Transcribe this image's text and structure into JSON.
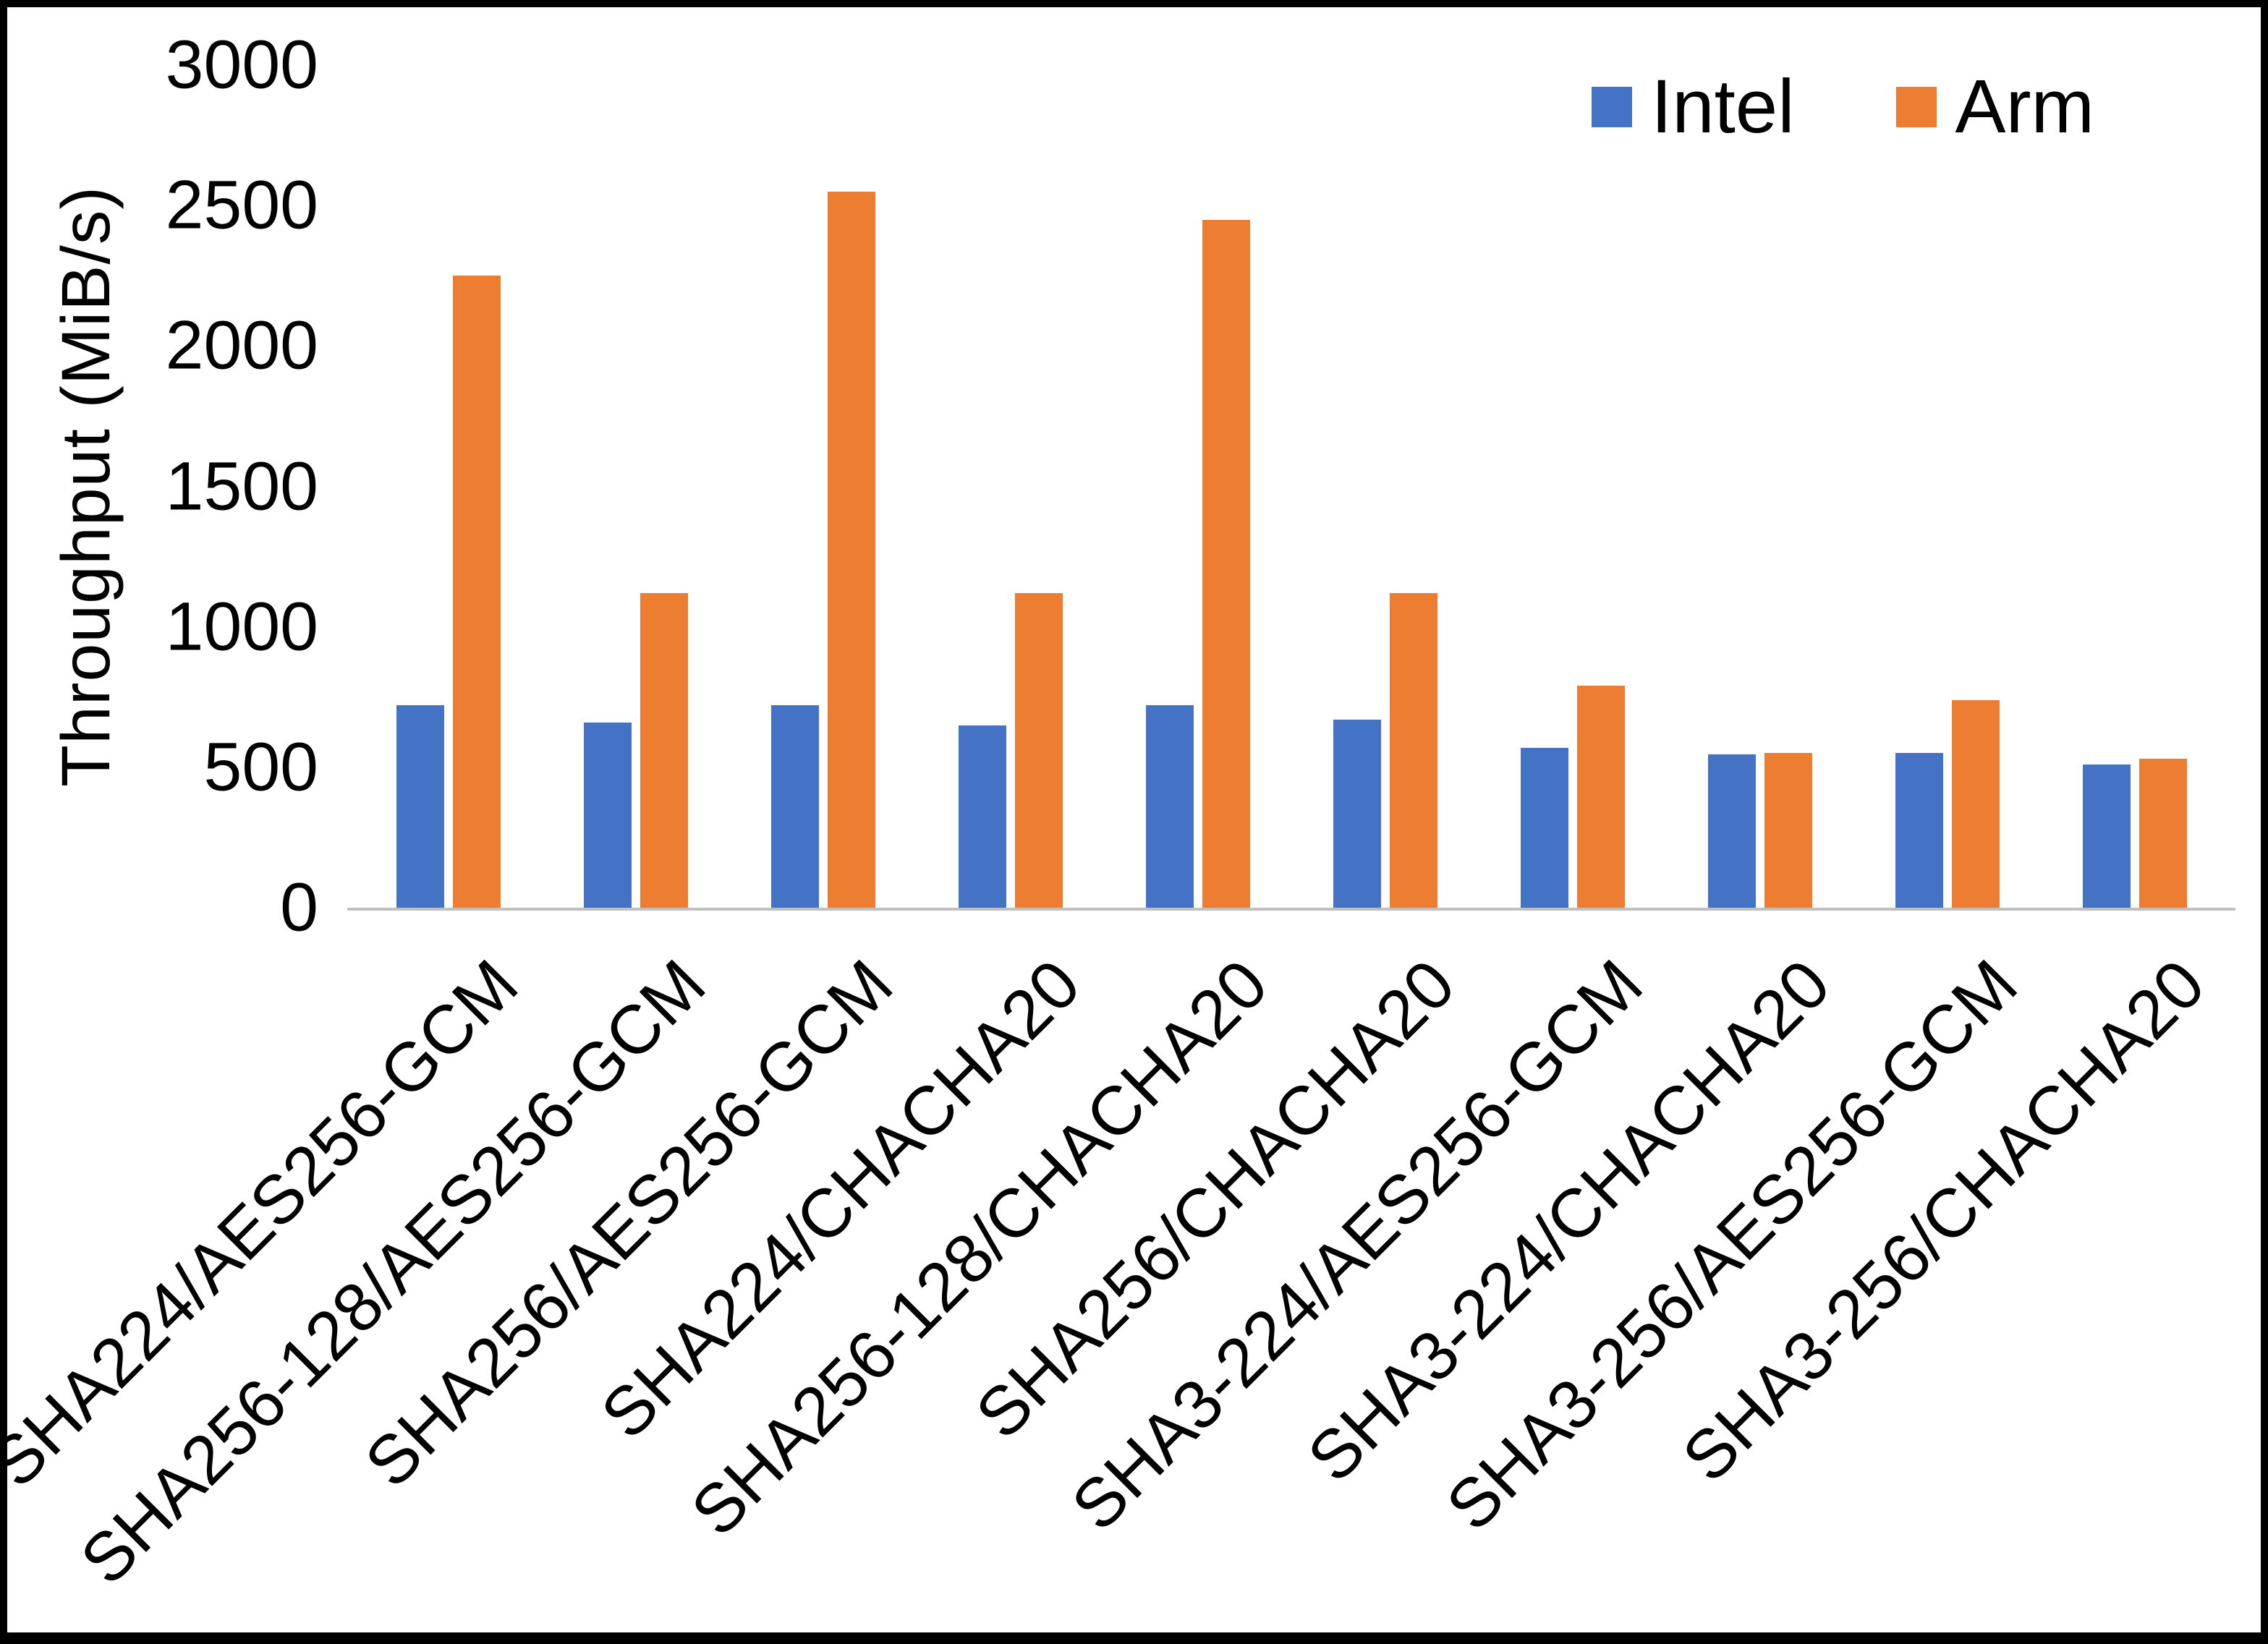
{
  "chart_data": {
    "type": "bar",
    "title": "",
    "xlabel": "",
    "ylabel": "Throughput (MiB/s)",
    "ylim": [
      0,
      3000
    ],
    "yticks": [
      0,
      500,
      1000,
      1500,
      2000,
      2500,
      3000
    ],
    "grid": false,
    "legend_position": "top-right",
    "background_color": "#FFFFFF",
    "border_color": "#000000",
    "axis_line_color": "#BFBFBF",
    "text_color": "#000000",
    "categories": [
      "SHA224/AES256-GCM",
      "SHA256-128/AES256-GCM",
      "SHA256/AES256-GCM",
      "SHA224/CHACHA20",
      "SHA256-128/CHACHA20",
      "SHA256/CHACHA20",
      "SHA3-224/AES256-GCM",
      "SHA3-224/CHACHA20",
      "SHA3-256/AES256-GCM",
      "SHA3-256/CHACHA20"
    ],
    "series": [
      {
        "name": "Intel",
        "color": "#4472C4",
        "values": [
          720,
          660,
          720,
          650,
          720,
          670,
          570,
          545,
          550,
          510
        ]
      },
      {
        "name": "Arm",
        "color": "#ED7D31",
        "values": [
          2250,
          1120,
          2550,
          1120,
          2450,
          1120,
          790,
          550,
          740,
          530
        ]
      }
    ]
  }
}
